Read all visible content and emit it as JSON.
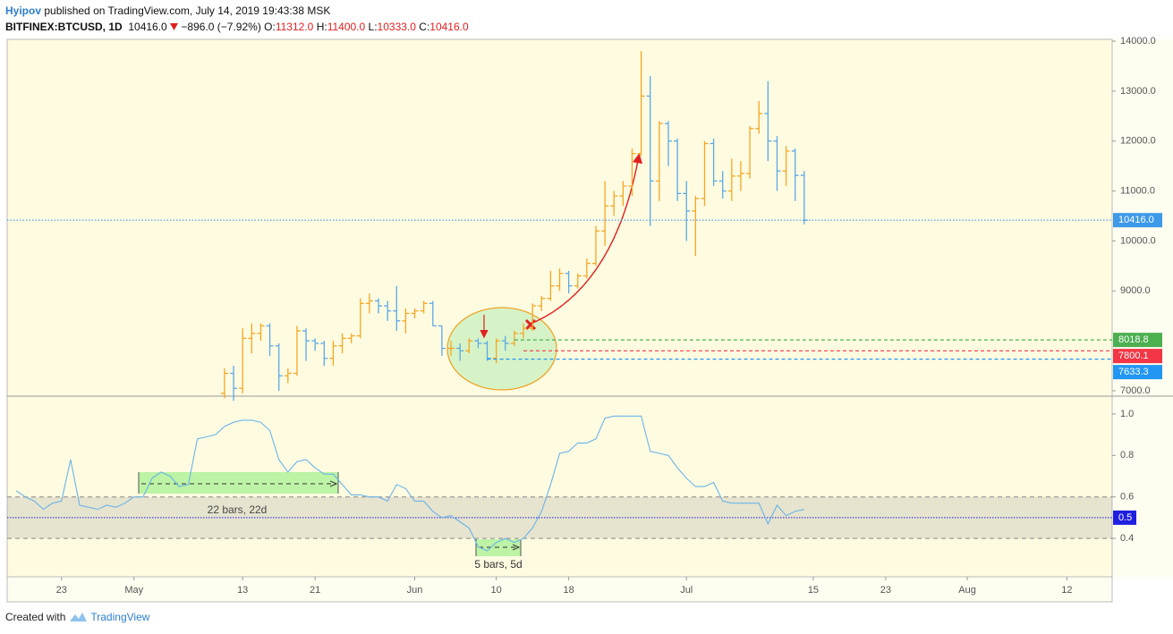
{
  "header": {
    "publisher": "Hyipov",
    "published": "published on TradingView.com, July 14, 2019 19:43:38 MSK",
    "symbol": "BITFINEX:BTCUSD, 1D",
    "last": "10416.0",
    "change": "−896.0 (−7.92%)",
    "ohlc_labels": [
      "O:",
      "H:",
      "L:",
      "C:"
    ],
    "ohlc_values": [
      "11312.0",
      "11400.0",
      "10333.0",
      "10416.0"
    ]
  },
  "footer": {
    "created": "Created with",
    "brand": "TradingView"
  },
  "chart_data": [
    {
      "type": "ohlc",
      "up_color": "#f5a623",
      "down_color": "#5aa9e6",
      "xlim": [
        "2019-04-17",
        "2019-08-17"
      ],
      "x": [
        "2019-05-11",
        "2019-05-12",
        "2019-05-13",
        "2019-05-14",
        "2019-05-15",
        "2019-05-16",
        "2019-05-17",
        "2019-05-18",
        "2019-05-19",
        "2019-05-20",
        "2019-05-21",
        "2019-05-22",
        "2019-05-23",
        "2019-05-24",
        "2019-05-25",
        "2019-05-26",
        "2019-05-27",
        "2019-05-28",
        "2019-05-29",
        "2019-05-30",
        "2019-05-31",
        "2019-06-01",
        "2019-06-02",
        "2019-06-03",
        "2019-06-04",
        "2019-06-05",
        "2019-06-06",
        "2019-06-07",
        "2019-06-08",
        "2019-06-09",
        "2019-06-10",
        "2019-06-11",
        "2019-06-12",
        "2019-06-13",
        "2019-06-14",
        "2019-06-15",
        "2019-06-16",
        "2019-06-17",
        "2019-06-18",
        "2019-06-19",
        "2019-06-20",
        "2019-06-21",
        "2019-06-22",
        "2019-06-23",
        "2019-06-24",
        "2019-06-25",
        "2019-06-26",
        "2019-06-27",
        "2019-06-28",
        "2019-06-29",
        "2019-06-30",
        "2019-07-01",
        "2019-07-02",
        "2019-07-03",
        "2019-07-04",
        "2019-07-05",
        "2019-07-06",
        "2019-07-07",
        "2019-07-08",
        "2019-07-09",
        "2019-07-10",
        "2019-07-11",
        "2019-07-12",
        "2019-07-13",
        "2019-07-14"
      ],
      "open": [
        6950,
        7350,
        7050,
        8050,
        8150,
        8300,
        7900,
        7300,
        7350,
        8200,
        8000,
        7950,
        7650,
        7900,
        8050,
        8100,
        8750,
        8800,
        8700,
        8600,
        8400,
        8550,
        8600,
        8750,
        8300,
        7850,
        7850,
        7800,
        8000,
        7950,
        7650,
        8000,
        7950,
        8150,
        8250,
        8700,
        8850,
        9100,
        9350,
        9100,
        9300,
        9550,
        10200,
        10700,
        10900,
        11100,
        11750,
        12900,
        11200,
        12350,
        12000,
        10950,
        10600,
        10850,
        11950,
        11200,
        11000,
        11300,
        11350,
        12250,
        12550,
        12000,
        11400,
        11800,
        11312
      ],
      "high": [
        7450,
        7500,
        8250,
        8350,
        8350,
        8350,
        7950,
        7450,
        8300,
        8250,
        8050,
        8000,
        8000,
        8150,
        8150,
        8850,
        8950,
        8850,
        8800,
        9100,
        8650,
        8650,
        8800,
        8800,
        8300,
        8000,
        7950,
        8050,
        8050,
        8000,
        8050,
        8100,
        8200,
        8350,
        8750,
        8900,
        9400,
        9450,
        9400,
        9350,
        9650,
        10300,
        11200,
        11000,
        11200,
        11850,
        13800,
        13300,
        12400,
        12400,
        12050,
        11200,
        10900,
        12000,
        12050,
        11400,
        11650,
        11600,
        12300,
        12800,
        13200,
        12100,
        11900,
        11850,
        11400
      ],
      "low": [
        6850,
        6800,
        6950,
        7750,
        8000,
        7700,
        7000,
        7150,
        7300,
        7600,
        7800,
        7500,
        7500,
        7750,
        7950,
        8050,
        8550,
        8550,
        8400,
        8200,
        8150,
        8450,
        8550,
        8300,
        7700,
        7700,
        7600,
        7750,
        7850,
        7600,
        7550,
        7800,
        7900,
        8050,
        8200,
        8600,
        8800,
        9000,
        8950,
        9050,
        9250,
        9500,
        9900,
        10500,
        10700,
        10900,
        11700,
        10300,
        10800,
        11500,
        10800,
        10000,
        9700,
        10700,
        11100,
        10850,
        10800,
        11000,
        11250,
        12150,
        11600,
        11000,
        11100,
        10800,
        10333
      ],
      "close": [
        7350,
        7050,
        8050,
        8150,
        8300,
        7900,
        7300,
        7350,
        8200,
        8000,
        7950,
        7650,
        7900,
        8050,
        8100,
        8750,
        8800,
        8700,
        8600,
        8400,
        8550,
        8600,
        8750,
        8300,
        7850,
        7850,
        7800,
        8000,
        7950,
        7650,
        8000,
        7950,
        8150,
        8250,
        8700,
        8850,
        9100,
        9350,
        9100,
        9300,
        9550,
        10200,
        10700,
        10900,
        11100,
        11750,
        12900,
        11200,
        12350,
        12000,
        10950,
        10600,
        10850,
        11950,
        11200,
        11000,
        11300,
        11350,
        12250,
        12550,
        12000,
        11400,
        11800,
        11312,
        10416
      ],
      "ylim": [
        6893,
        14036
      ],
      "yticks": [
        {
          "value": 7000,
          "label": "7000.0"
        },
        {
          "value": 9000,
          "label": "9000.0"
        },
        {
          "value": 10000,
          "label": "10000.0"
        },
        {
          "value": 11000,
          "label": "11000.0"
        },
        {
          "value": 12000,
          "label": "12000.0"
        },
        {
          "value": 13000,
          "label": "13000.0"
        },
        {
          "value": 14000,
          "label": "14000.0"
        }
      ],
      "grid": false,
      "levels": [
        {
          "value": 10416,
          "label": "10416.0",
          "color": "#3d9ae8",
          "dash": "dotted"
        },
        {
          "value": 8018.8,
          "color": "#4caf50",
          "dash": "dashed",
          "start": "2019-06-12"
        },
        {
          "value": 7800.1,
          "color": "#f23645",
          "dash": "dashed",
          "start": "2019-06-13"
        },
        {
          "value": 7633.3,
          "color": "#2196f3",
          "dash": "dashed",
          "start": "2019-06-09"
        }
      ]
    },
    {
      "type": "line",
      "color": "#6ab4e8",
      "xlim": [
        "2019-04-17",
        "2019-08-17"
      ],
      "x": [
        "2019-04-18",
        "2019-04-19",
        "2019-04-20",
        "2019-04-21",
        "2019-04-22",
        "2019-04-23",
        "2019-04-24",
        "2019-04-25",
        "2019-04-26",
        "2019-04-27",
        "2019-04-28",
        "2019-04-29",
        "2019-04-30",
        "2019-05-01",
        "2019-05-02",
        "2019-05-03",
        "2019-05-04",
        "2019-05-05",
        "2019-05-06",
        "2019-05-07",
        "2019-05-08",
        "2019-05-09",
        "2019-05-10",
        "2019-05-11",
        "2019-05-12",
        "2019-05-13",
        "2019-05-14",
        "2019-05-15",
        "2019-05-16",
        "2019-05-17",
        "2019-05-18",
        "2019-05-19",
        "2019-05-20",
        "2019-05-21",
        "2019-05-22",
        "2019-05-23",
        "2019-05-24",
        "2019-05-25",
        "2019-05-26",
        "2019-05-27",
        "2019-05-28",
        "2019-05-29",
        "2019-05-30",
        "2019-05-31",
        "2019-06-01",
        "2019-06-02",
        "2019-06-03",
        "2019-06-04",
        "2019-06-05",
        "2019-06-06",
        "2019-06-07",
        "2019-06-08",
        "2019-06-09",
        "2019-06-10",
        "2019-06-11",
        "2019-06-12",
        "2019-06-13",
        "2019-06-14",
        "2019-06-15",
        "2019-06-16",
        "2019-06-17",
        "2019-06-18",
        "2019-06-19",
        "2019-06-20",
        "2019-06-21",
        "2019-06-22",
        "2019-06-23",
        "2019-06-24",
        "2019-06-25",
        "2019-06-26",
        "2019-06-27",
        "2019-06-28",
        "2019-06-29",
        "2019-06-30",
        "2019-07-01",
        "2019-07-02",
        "2019-07-03",
        "2019-07-04",
        "2019-07-05",
        "2019-07-06",
        "2019-07-07",
        "2019-07-08",
        "2019-07-09",
        "2019-07-10",
        "2019-07-11",
        "2019-07-12",
        "2019-07-13",
        "2019-07-14"
      ],
      "values": [
        0.63,
        0.6,
        0.58,
        0.54,
        0.57,
        0.58,
        0.78,
        0.56,
        0.55,
        0.54,
        0.56,
        0.55,
        0.57,
        0.6,
        0.6,
        0.69,
        0.72,
        0.7,
        0.65,
        0.66,
        0.88,
        0.89,
        0.9,
        0.94,
        0.96,
        0.97,
        0.97,
        0.96,
        0.92,
        0.78,
        0.72,
        0.77,
        0.78,
        0.74,
        0.71,
        0.71,
        0.66,
        0.61,
        0.61,
        0.6,
        0.6,
        0.58,
        0.66,
        0.64,
        0.58,
        0.58,
        0.53,
        0.5,
        0.51,
        0.48,
        0.45,
        0.36,
        0.34,
        0.38,
        0.4,
        0.38,
        0.4,
        0.45,
        0.53,
        0.66,
        0.81,
        0.82,
        0.86,
        0.86,
        0.88,
        0.98,
        0.99,
        0.99,
        0.99,
        0.99,
        0.82,
        0.81,
        0.8,
        0.74,
        0.69,
        0.65,
        0.65,
        0.67,
        0.58,
        0.57,
        0.57,
        0.57,
        0.57,
        0.47,
        0.56,
        0.51,
        0.53,
        0.54
      ],
      "ylim": [
        0.215,
        1.086
      ],
      "yticks": [
        0.4,
        0.6,
        0.8,
        {
          "value": 1,
          "label": "1.0"
        }
      ],
      "band": [
        0.4,
        0.6
      ],
      "midline": 0.5,
      "midline_color": "#1f1fe0",
      "annotations": [
        "22 bars, 22d",
        "5 bars, 5d"
      ],
      "xticks": [
        {
          "value": "2019-04-23",
          "label": "23"
        },
        {
          "value": "2019-05-01",
          "label": "May"
        },
        {
          "value": "2019-05-13",
          "label": "13"
        },
        {
          "value": "2019-05-21",
          "label": "21"
        },
        {
          "value": "2019-06-01",
          "label": "Jun"
        },
        {
          "value": "2019-06-10",
          "label": "10"
        },
        {
          "value": "2019-06-18",
          "label": "18"
        },
        {
          "value": "2019-07-01",
          "label": "Jul"
        },
        {
          "value": "2019-07-15",
          "label": "15"
        },
        {
          "value": "2019-07-23",
          "label": "23"
        },
        {
          "value": "2019-08-01",
          "label": "Aug"
        },
        {
          "value": "2019-08-12",
          "label": "12"
        }
      ]
    }
  ]
}
